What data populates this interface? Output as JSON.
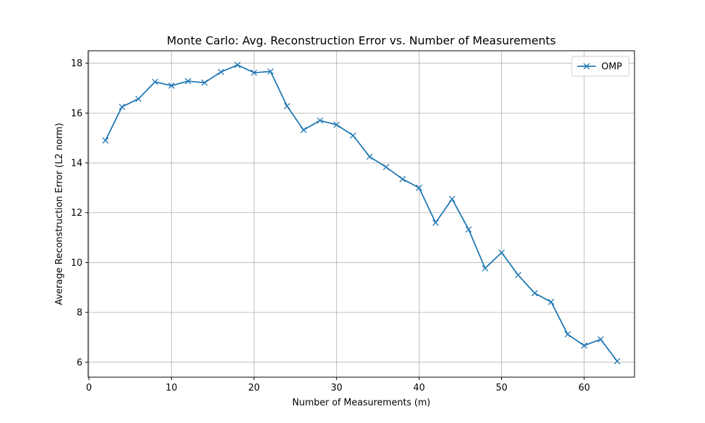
{
  "chart_data": {
    "type": "line",
    "title": "Monte Carlo: Avg. Reconstruction Error vs. Number of Measurements",
    "xlabel": "Number of Measurements (m)",
    "ylabel": "Average Reconstruction Error (L2 norm)",
    "xlim": [
      -0.1,
      66.1
    ],
    "ylim": [
      5.4,
      18.5
    ],
    "xticks": [
      0,
      10,
      20,
      30,
      40,
      50,
      60
    ],
    "yticks": [
      6,
      8,
      10,
      12,
      14,
      16,
      18
    ],
    "grid": true,
    "legend_position": "top-right",
    "colors": {
      "series": "#1f77b4",
      "grid": "#b0b0b0"
    },
    "series": [
      {
        "name": "OMP",
        "marker": "x",
        "x": [
          2,
          4,
          6,
          8,
          10,
          12,
          14,
          16,
          18,
          20,
          22,
          24,
          26,
          28,
          30,
          32,
          34,
          36,
          38,
          40,
          42,
          44,
          46,
          48,
          50,
          52,
          54,
          56,
          58,
          60,
          62,
          64
        ],
        "y": [
          14.9,
          16.25,
          16.57,
          17.25,
          17.1,
          17.28,
          17.22,
          17.65,
          17.93,
          17.62,
          17.67,
          16.28,
          15.32,
          15.7,
          15.53,
          15.1,
          14.25,
          13.83,
          13.35,
          13.0,
          11.6,
          12.55,
          11.33,
          9.77,
          10.4,
          9.5,
          8.77,
          8.42,
          7.12,
          6.67,
          6.92,
          6.04
        ]
      }
    ]
  }
}
